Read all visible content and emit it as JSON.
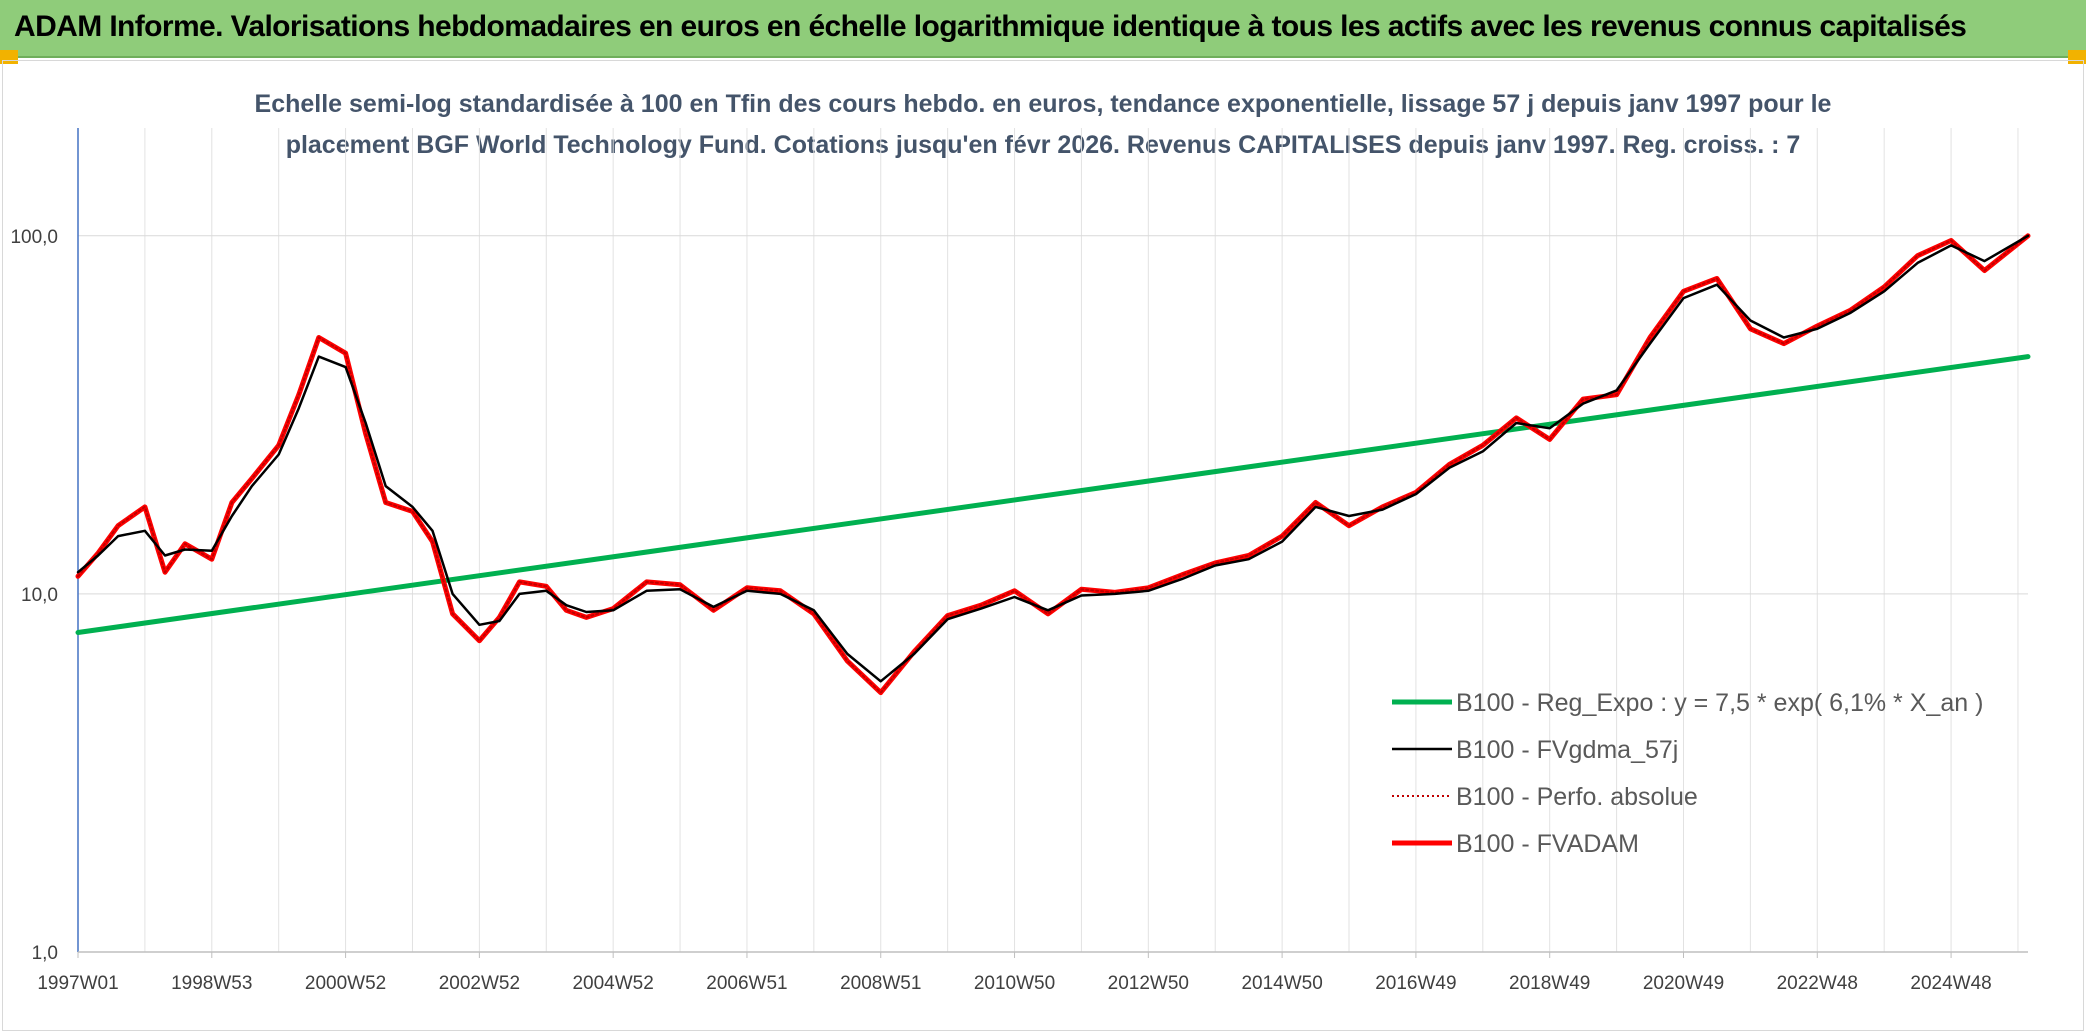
{
  "header": {
    "title": "ADAM Informe. Valorisations hebdomadaires en euros en échelle logarithmique identique à tous les actifs avec les revenus connus capitalisés",
    "background_color": "#8fcc7a"
  },
  "chart_data": {
    "type": "line",
    "subtitle_lines": [
      "Echelle semi-log standardisée à 100 en Tfin des cours hebdo. en euros, tendance exponentielle, lissage 57 j depuis janv 1997 pour le",
      "placement BGF World Technology Fund. Cotations jusqu'en févr 2026. Revenus CAPITALISES depuis janv 1997. Reg. croiss. : 7"
    ],
    "y_scale": "log",
    "ylim": [
      1,
      200
    ],
    "xlim": [
      1997.0,
      2026.15
    ],
    "y_ticks": [
      {
        "value": 1,
        "label": "1,0"
      },
      {
        "value": 10,
        "label": "10,0"
      },
      {
        "value": 100,
        "label": "100,0"
      }
    ],
    "x_ticks": [
      {
        "value": 1997.0,
        "label": "1997W01"
      },
      {
        "value": 1999.0,
        "label": "1998W53"
      },
      {
        "value": 2001.0,
        "label": "2000W52"
      },
      {
        "value": 2003.0,
        "label": "2002W52"
      },
      {
        "value": 2005.0,
        "label": "2004W52"
      },
      {
        "value": 2007.0,
        "label": "2006W51"
      },
      {
        "value": 2009.0,
        "label": "2008W51"
      },
      {
        "value": 2011.0,
        "label": "2010W50"
      },
      {
        "value": 2013.0,
        "label": "2012W50"
      },
      {
        "value": 2015.0,
        "label": "2014W50"
      },
      {
        "value": 2017.0,
        "label": "2016W49"
      },
      {
        "value": 2019.0,
        "label": "2018W49"
      },
      {
        "value": 2021.0,
        "label": "2020W49"
      },
      {
        "value": 2023.0,
        "label": "2022W48"
      },
      {
        "value": 2025.0,
        "label": "2024W48"
      }
    ],
    "grid": "vertical-and-horizontal",
    "legend_position": "bottom-right",
    "series": [
      {
        "name": "B100 - Reg_Expo : y = 7,5 * exp( 6,1% *  X_an )",
        "color": "#00b050",
        "style": "solid-thick",
        "x": [
          1997.0,
          2026.15
        ],
        "y": [
          7.8,
          46.0
        ]
      },
      {
        "name": "B100 - FVgdma_57j",
        "color": "#000000",
        "style": "solid-thin",
        "x": [
          1997.0,
          1997.3,
          1997.6,
          1998.0,
          1998.3,
          1998.6,
          1999.0,
          1999.3,
          1999.6,
          2000.0,
          2000.3,
          2000.6,
          2001.0,
          2001.3,
          2001.6,
          2002.0,
          2002.3,
          2002.6,
          2003.0,
          2003.3,
          2003.6,
          2004.0,
          2004.3,
          2004.6,
          2005.0,
          2005.5,
          2006.0,
          2006.5,
          2007.0,
          2007.5,
          2008.0,
          2008.5,
          2009.0,
          2009.5,
          2010.0,
          2010.5,
          2011.0,
          2011.5,
          2012.0,
          2012.5,
          2013.0,
          2013.5,
          2014.0,
          2014.5,
          2015.0,
          2015.5,
          2016.0,
          2016.5,
          2017.0,
          2017.5,
          2018.0,
          2018.5,
          2019.0,
          2019.5,
          2020.0,
          2020.5,
          2021.0,
          2021.5,
          2022.0,
          2022.5,
          2023.0,
          2023.5,
          2024.0,
          2024.5,
          2025.0,
          2025.5,
          2026.15
        ],
        "y": [
          11.5,
          12.8,
          14.5,
          15.0,
          12.8,
          13.3,
          13.2,
          16.5,
          20.0,
          24.5,
          33.0,
          46.0,
          43.0,
          30.0,
          20.0,
          17.5,
          15.0,
          10.0,
          8.2,
          8.4,
          10.0,
          10.2,
          9.3,
          8.9,
          9.0,
          10.2,
          10.3,
          9.2,
          10.2,
          10.0,
          9.0,
          6.8,
          5.7,
          6.8,
          8.5,
          9.1,
          9.8,
          9.0,
          9.9,
          10.0,
          10.2,
          11.0,
          12.0,
          12.5,
          14.0,
          17.5,
          16.5,
          17.2,
          19.0,
          22.5,
          25.0,
          30.0,
          29.0,
          34.0,
          37.0,
          50.0,
          67.0,
          73.0,
          58.0,
          52.0,
          55.0,
          61.0,
          70.0,
          84.0,
          94.0,
          85.0,
          100.0
        ]
      },
      {
        "name": "B100 - Perfo. absolue",
        "color": "#c00000",
        "style": "dotted",
        "x": [
          1997.0,
          1997.3,
          1997.6,
          1998.0,
          1998.3,
          1998.6,
          1999.0,
          1999.3,
          1999.6,
          2000.0,
          2000.3,
          2000.6,
          2001.0,
          2001.3,
          2001.6,
          2002.0,
          2002.3,
          2002.6,
          2003.0,
          2003.3,
          2003.6,
          2004.0,
          2004.3,
          2004.6,
          2005.0,
          2005.5,
          2006.0,
          2006.5,
          2007.0,
          2007.5,
          2008.0,
          2008.5,
          2009.0,
          2009.5,
          2010.0,
          2010.5,
          2011.0,
          2011.5,
          2012.0,
          2012.5,
          2013.0,
          2013.5,
          2014.0,
          2014.5,
          2015.0,
          2015.5,
          2016.0,
          2016.5,
          2017.0,
          2017.5,
          2018.0,
          2018.5,
          2019.0,
          2019.5,
          2020.0,
          2020.5,
          2021.0,
          2021.5,
          2022.0,
          2022.5,
          2023.0,
          2023.5,
          2024.0,
          2024.5,
          2025.0,
          2025.5,
          2026.15
        ],
        "y": [
          11.2,
          13.0,
          15.5,
          17.5,
          11.5,
          13.8,
          12.5,
          18.0,
          21.0,
          26.0,
          36.0,
          52.0,
          47.0,
          28.0,
          18.0,
          17.0,
          14.0,
          8.8,
          7.4,
          8.6,
          10.8,
          10.5,
          9.0,
          8.6,
          9.1,
          10.8,
          10.6,
          9.0,
          10.4,
          10.2,
          8.8,
          6.5,
          5.3,
          6.9,
          8.7,
          9.3,
          10.2,
          8.8,
          10.3,
          10.1,
          10.4,
          11.3,
          12.2,
          12.8,
          14.5,
          18.0,
          15.5,
          17.5,
          19.2,
          23.0,
          26.0,
          31.0,
          27.0,
          35.0,
          36.0,
          52.0,
          70.0,
          76.0,
          55.0,
          50.0,
          56.0,
          62.0,
          72.0,
          88.0,
          97.0,
          80.0,
          100.0
        ]
      },
      {
        "name": "B100 - FVADAM",
        "color": "#ff0000",
        "style": "solid-thick",
        "x": [
          1997.0,
          1997.3,
          1997.6,
          1998.0,
          1998.3,
          1998.6,
          1999.0,
          1999.3,
          1999.6,
          2000.0,
          2000.3,
          2000.6,
          2001.0,
          2001.3,
          2001.6,
          2002.0,
          2002.3,
          2002.6,
          2003.0,
          2003.3,
          2003.6,
          2004.0,
          2004.3,
          2004.6,
          2005.0,
          2005.5,
          2006.0,
          2006.5,
          2007.0,
          2007.5,
          2008.0,
          2008.5,
          2009.0,
          2009.5,
          2010.0,
          2010.5,
          2011.0,
          2011.5,
          2012.0,
          2012.5,
          2013.0,
          2013.5,
          2014.0,
          2014.5,
          2015.0,
          2015.5,
          2016.0,
          2016.5,
          2017.0,
          2017.5,
          2018.0,
          2018.5,
          2019.0,
          2019.5,
          2020.0,
          2020.5,
          2021.0,
          2021.5,
          2022.0,
          2022.5,
          2023.0,
          2023.5,
          2024.0,
          2024.5,
          2025.0,
          2025.5,
          2026.15
        ],
        "y": [
          11.2,
          13.0,
          15.5,
          17.5,
          11.5,
          13.8,
          12.5,
          18.0,
          21.0,
          26.0,
          36.0,
          52.0,
          47.0,
          28.0,
          18.0,
          17.0,
          14.0,
          8.8,
          7.4,
          8.6,
          10.8,
          10.5,
          9.0,
          8.6,
          9.1,
          10.8,
          10.6,
          9.0,
          10.4,
          10.2,
          8.8,
          6.5,
          5.3,
          6.9,
          8.7,
          9.3,
          10.2,
          8.8,
          10.3,
          10.1,
          10.4,
          11.3,
          12.2,
          12.8,
          14.5,
          18.0,
          15.5,
          17.5,
          19.2,
          23.0,
          26.0,
          31.0,
          27.0,
          35.0,
          36.0,
          52.0,
          70.0,
          76.0,
          55.0,
          50.0,
          56.0,
          62.0,
          72.0,
          88.0,
          97.0,
          80.0,
          100.0
        ]
      }
    ]
  }
}
